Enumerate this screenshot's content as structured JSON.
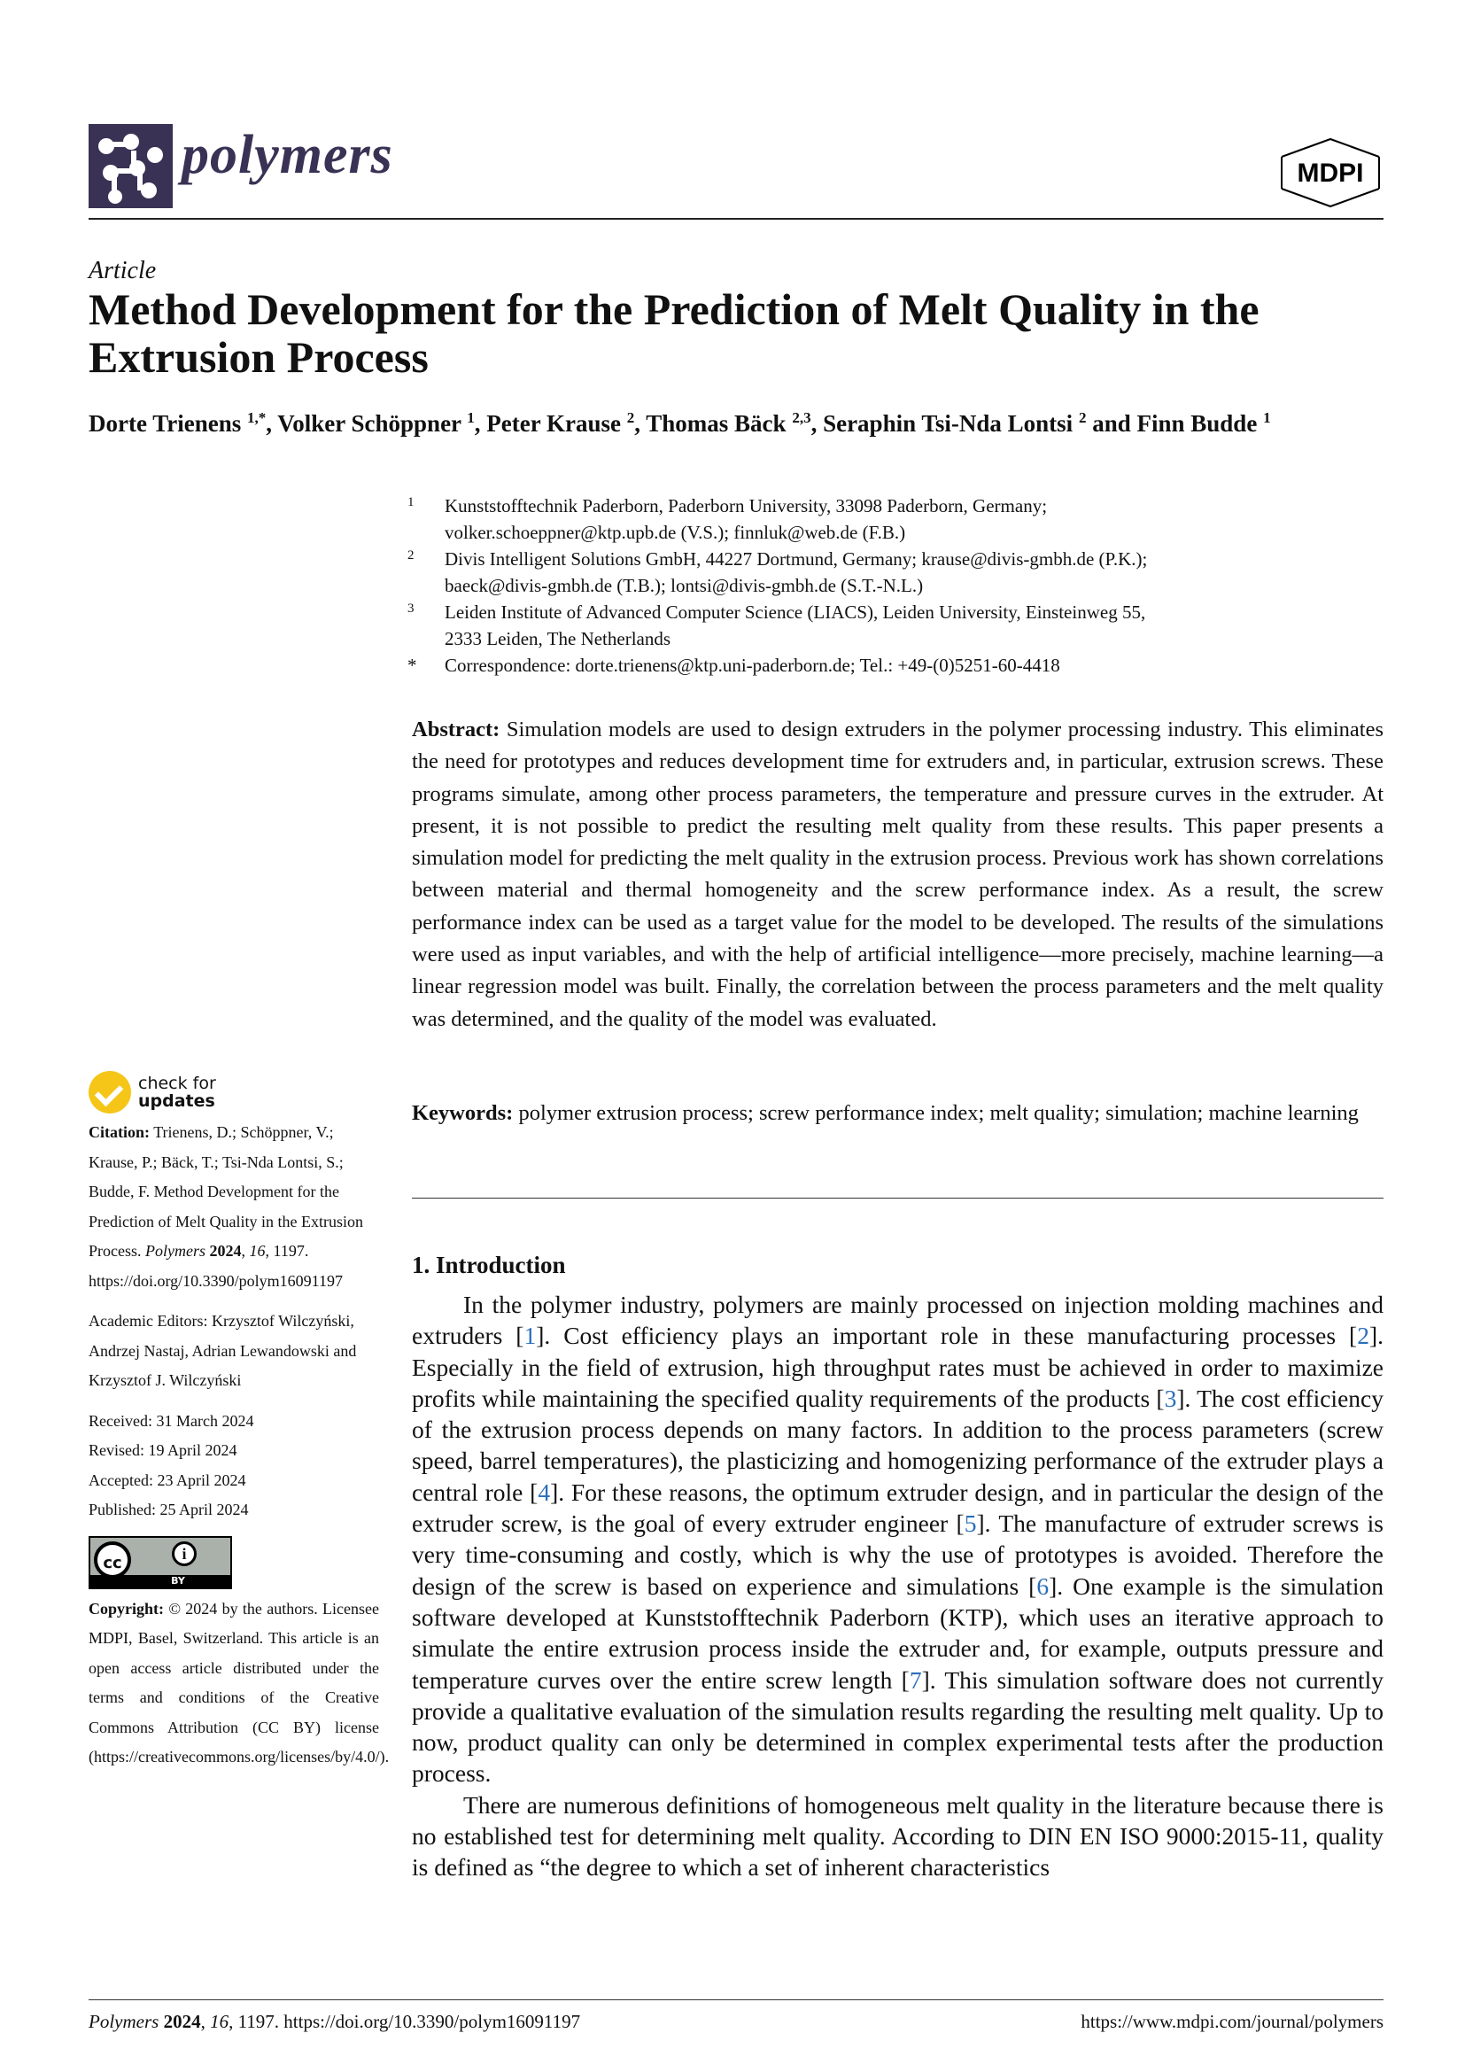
{
  "header": {
    "journal": "polymers",
    "publisher": "MDPI"
  },
  "article_type": "Article",
  "title": "Method Development for the Prediction of Melt Quality in the Extrusion Process",
  "authors": [
    {
      "name": "Dorte Trienens",
      "aff": "1,*"
    },
    {
      "name": "Volker Schöppner",
      "aff": "1"
    },
    {
      "name": "Peter Krause",
      "aff": "2"
    },
    {
      "name": "Thomas Bäck",
      "aff": "2,3"
    },
    {
      "name": "Seraphin Tsi-Nda Lontsi",
      "aff": "2"
    },
    {
      "name": "Finn Budde",
      "aff": "1"
    }
  ],
  "affiliations": [
    {
      "n": "1",
      "lines": [
        "Kunststofftechnik Paderborn, Paderborn University, 33098 Paderborn, Germany;",
        "volker.schoeppner@ktp.upb.de (V.S.); finnluk@web.de (F.B.)"
      ]
    },
    {
      "n": "2",
      "lines": [
        "Divis Intelligent Solutions GmbH, 44227 Dortmund, Germany; krause@divis-gmbh.de (P.K.);",
        "baeck@divis-gmbh.de (T.B.); lontsi@divis-gmbh.de (S.T.-N.L.)"
      ]
    },
    {
      "n": "3",
      "lines": [
        "Leiden Institute of Advanced Computer Science (LIACS), Leiden University, Einsteinweg 55,",
        "2333 Leiden, The Netherlands"
      ]
    },
    {
      "n": "*",
      "lines": [
        "Correspondence: dorte.trienens@ktp.uni-paderborn.de; Tel.: +49-(0)5251-60-4418"
      ]
    }
  ],
  "abstract": {
    "label": "Abstract:",
    "text": "Simulation models are used to design extruders in the polymer processing industry. This eliminates the need for prototypes and reduces development time for extruders and, in particular, extrusion screws. These programs simulate, among other process parameters, the temperature and pressure curves in the extruder. At present, it is not possible to predict the resulting melt quality from these results. This paper presents a simulation model for predicting the melt quality in the extrusion process. Previous work has shown correlations between material and thermal homogeneity and the screw performance index. As a result, the screw performance index can be used as a target value for the model to be developed. The results of the simulations were used as input variables, and with the help of artificial intelligence—more precisely, machine learning—a linear regression model was built. Finally, the correlation between the process parameters and the melt quality was determined, and the quality of the model was evaluated."
  },
  "keywords": {
    "label": "Keywords:",
    "text": "polymer extrusion process; screw performance index; melt quality; simulation; machine learning"
  },
  "introduction": {
    "heading": "1. Introduction",
    "p1": [
      "In the polymer industry, polymers are mainly processed on injection molding machines and extruders [",
      "1",
      "]. Cost efficiency plays an important role in these manufacturing processes [",
      "2",
      "]. Especially in the field of extrusion, high throughput rates must be achieved in order to maximize profits while maintaining the specified quality requirements of the products [",
      "3",
      "]. The cost efficiency of the extrusion process depends on many factors. In addition to the process parameters (screw speed, barrel temperatures), the plasticizing and homogenizing performance of the extruder plays a central role [",
      "4",
      "]. For these reasons, the optimum extruder design, and in particular the design of the extruder screw, is the goal of every extruder engineer [",
      "5",
      "]. The manufacture of extruder screws is very time-consuming and costly, which is why the use of prototypes is avoided. Therefore the design of the screw is based on experience and simulations [",
      "6",
      "]. One example is the simulation software developed at Kunststofftechnik Paderborn (KTP), which uses an iterative approach to simulate the entire extrusion process inside the extruder and, for example, outputs pressure and temperature curves over the entire screw length [",
      "7",
      "]. This simulation software does not currently provide a qualitative evaluation of the simulation results regarding the resulting melt quality. Up to now, product quality can only be determined in complex experimental tests after the production process."
    ],
    "p2": "There are numerous definitions of homogeneous melt quality in the literature because there is no established test for determining melt quality. According to DIN EN ISO 9000:2015-11, quality is defined as “the degree to which a set of inherent characteristics"
  },
  "sidebar": {
    "check_updates": [
      "check for",
      "updates"
    ],
    "citation_label": "Citation:",
    "citation_text": "Trienens, D.; Schöppner, V.; Krause, P.; Bäck, T.; Tsi-Nda Lontsi, S.; Budde, F. Method Development for the Prediction of Melt Quality in the Extrusion Process.",
    "citation_journal": "Polymers",
    "citation_year": "2024",
    "citation_volume": "16",
    "citation_rest": ", 1197. https://doi.org/10.3390/polym16091197",
    "editors": "Academic Editors: Krzysztof Wilczyński, Andrzej Nastaj, Adrian Lewandowski and Krzysztof J. Wilczyński",
    "dates": [
      "Received: 31 March 2024",
      "Revised: 19 April 2024",
      "Accepted: 23 April 2024",
      "Published: 25 April 2024"
    ],
    "cc_label": "cc",
    "cc_by": "BY",
    "copyright_label": "Copyright:",
    "copyright_text": "© 2024 by the authors. Licensee MDPI, Basel, Switzerland. This article is an open access article distributed under the terms and conditions of the Creative Commons Attribution (CC BY) license (https://creativecommons.org/licenses/by/4.0/)."
  },
  "footer": {
    "journal": "Polymers",
    "year": "2024",
    "volume": "16",
    "rest": ", 1197. https://doi.org/10.3390/polym16091197",
    "url": "https://www.mdpi.com/journal/polymers"
  },
  "colors": {
    "brand": "#3a3254",
    "link": "#2a6ebb",
    "check": "#f5c518"
  }
}
